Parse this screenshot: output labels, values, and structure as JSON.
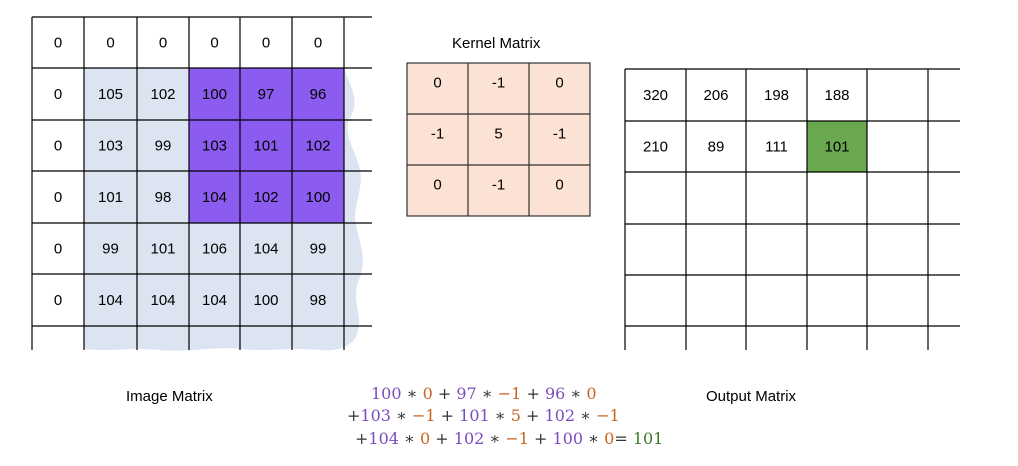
{
  "image_matrix": {
    "caption": "Image Matrix",
    "rows": [
      [
        "0",
        "0",
        "0",
        "0",
        "0",
        "0"
      ],
      [
        "0",
        "105",
        "102",
        "100",
        "97",
        "96"
      ],
      [
        "0",
        "103",
        "99",
        "103",
        "101",
        "102"
      ],
      [
        "0",
        "101",
        "98",
        "104",
        "102",
        "100"
      ],
      [
        "0",
        "99",
        "101",
        "106",
        "104",
        "99"
      ],
      [
        "0",
        "104",
        "104",
        "104",
        "100",
        "98"
      ]
    ],
    "highlight_color": "#8c5cf0",
    "fill_color": "#dce4f2"
  },
  "kernel_matrix": {
    "title": "Kernel Matrix",
    "rows": [
      [
        "0",
        "-1",
        "0"
      ],
      [
        "-1",
        "5",
        "-1"
      ],
      [
        "0",
        "-1",
        "0"
      ]
    ],
    "fill_color": "#fbe2d4"
  },
  "output_matrix": {
    "caption": "Output Matrix",
    "rows": [
      [
        "320",
        "206",
        "198",
        "188",
        "",
        ""
      ],
      [
        "210",
        "89",
        "111",
        "101",
        "",
        ""
      ],
      [
        "",
        "",
        "",
        "",
        "",
        ""
      ],
      [
        "",
        "",
        "",
        "",
        "",
        ""
      ],
      [
        "",
        "",
        "",
        "",
        "",
        ""
      ]
    ],
    "highlight_color": "#6aa84f"
  },
  "formula": {
    "line1": [
      {
        "t": "100",
        "c": "num"
      },
      {
        "t": " ∗ ",
        "c": "op"
      },
      {
        "t": "0",
        "c": "k"
      },
      {
        "t": " + ",
        "c": "op"
      },
      {
        "t": "97",
        "c": "num"
      },
      {
        "t": " ∗ ",
        "c": "op"
      },
      {
        "t": "−1",
        "c": "k"
      },
      {
        "t": " + ",
        "c": "op"
      },
      {
        "t": "96",
        "c": "num"
      },
      {
        "t": " ∗ ",
        "c": "op"
      },
      {
        "t": "0",
        "c": "k"
      }
    ],
    "line2": [
      {
        "t": "+",
        "c": "op"
      },
      {
        "t": "103",
        "c": "num"
      },
      {
        "t": " ∗ ",
        "c": "op"
      },
      {
        "t": "−1",
        "c": "k"
      },
      {
        "t": " + ",
        "c": "op"
      },
      {
        "t": "101",
        "c": "num"
      },
      {
        "t": " ∗ ",
        "c": "op"
      },
      {
        "t": "5",
        "c": "k"
      },
      {
        "t": " + ",
        "c": "op"
      },
      {
        "t": "102",
        "c": "num"
      },
      {
        "t": " ∗ ",
        "c": "op"
      },
      {
        "t": "−1",
        "c": "k"
      }
    ],
    "line3": [
      {
        "t": "+",
        "c": "op"
      },
      {
        "t": "104",
        "c": "num"
      },
      {
        "t": " ∗ ",
        "c": "op"
      },
      {
        "t": "0",
        "c": "k"
      },
      {
        "t": " + ",
        "c": "op"
      },
      {
        "t": "102",
        "c": "num"
      },
      {
        "t": " ∗ ",
        "c": "op"
      },
      {
        "t": "−1",
        "c": "k"
      },
      {
        "t": " + ",
        "c": "op"
      },
      {
        "t": "100",
        "c": "num"
      },
      {
        "t": " ∗ ",
        "c": "op"
      },
      {
        "t": "0",
        "c": "k"
      },
      {
        "t": "= ",
        "c": "op"
      },
      {
        "t": "101",
        "c": "res"
      }
    ]
  }
}
